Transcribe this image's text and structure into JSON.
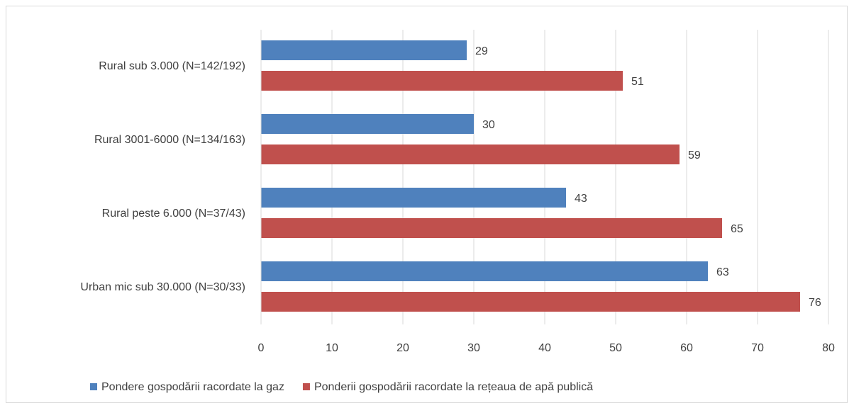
{
  "chart_data": {
    "type": "bar",
    "orientation": "horizontal",
    "categories": [
      "Rural sub 3.000 (N=142/192)",
      "Rural 3001-6000 (N=134/163)",
      "Rural peste 6.000 (N=37/43)",
      "Urban mic sub 30.000 (N=30/33)"
    ],
    "series": [
      {
        "name": "Pondere gospodării racordate la gaz",
        "color": "#4f81bd",
        "values": [
          29,
          30,
          43,
          63
        ]
      },
      {
        "name": "Ponderii gospodării racordate la rețeaua de apă publică",
        "color": "#c0504d",
        "values": [
          51,
          59,
          65,
          76
        ]
      }
    ],
    "xlim": [
      0,
      80
    ],
    "xticks": [
      0,
      10,
      20,
      30,
      40,
      50,
      60,
      70,
      80
    ],
    "grid": true,
    "legend": "bottom"
  }
}
